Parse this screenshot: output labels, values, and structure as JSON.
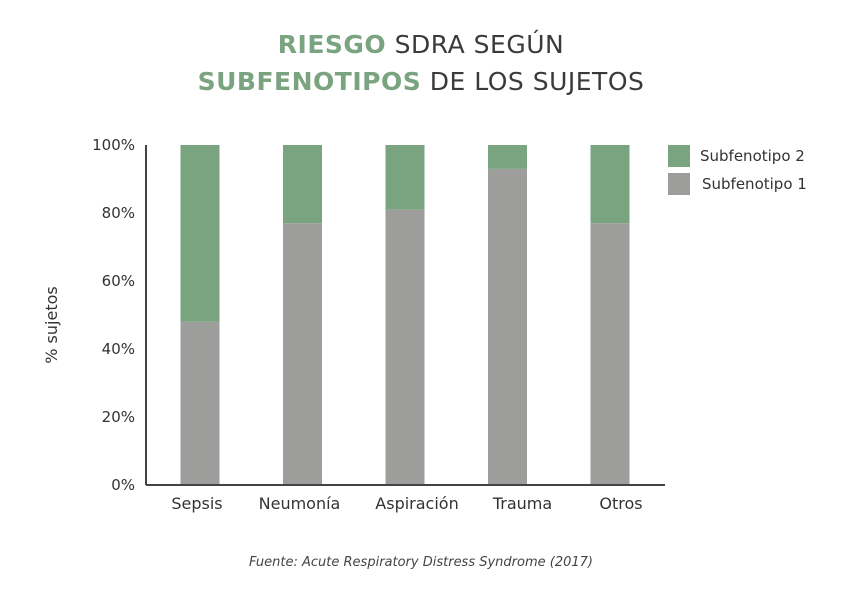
{
  "title": {
    "line1_highlight": "RIESGO",
    "line1_rest": " SDRA SEGÚN",
    "line2_highlight": "SUBFENOTIPOS",
    "line2_rest": " DE LOS SUJETOS"
  },
  "source": "Fuente: Acute Respiratory Distress Syndrome (2017)",
  "chart_data": {
    "type": "bar",
    "stacked": true,
    "categories": [
      "Sepsis",
      "Neumonía",
      "Aspiración",
      "Trauma",
      "Otros"
    ],
    "series": [
      {
        "name": "Subfenotipo 1",
        "color": "#9d9d9c",
        "values": [
          48,
          77,
          81,
          93,
          77
        ]
      },
      {
        "name": "Subfenotipo 2",
        "color": "#7aa37f",
        "values": [
          52,
          23,
          19,
          7,
          23
        ]
      }
    ],
    "ylabel": "% sujetos",
    "xlabel": "",
    "ylim": [
      0,
      100
    ],
    "yticks": [
      "0%",
      "20%",
      "40%",
      "60%",
      "80%",
      "100%"
    ],
    "grid": false,
    "legend": "top-right"
  }
}
